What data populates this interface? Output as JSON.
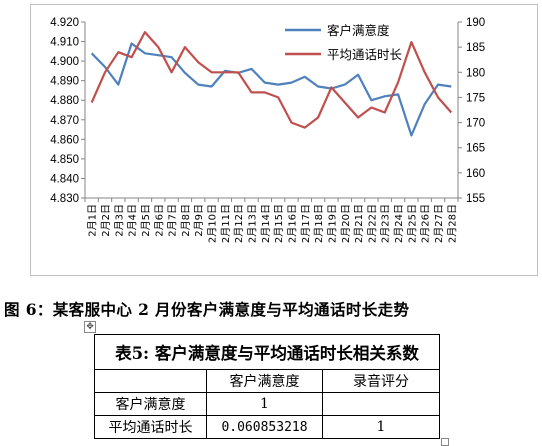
{
  "chart_data": {
    "type": "line",
    "categories": [
      "2月1日",
      "2月2日",
      "2月3日",
      "2月4日",
      "2月5日",
      "2月6日",
      "2月7日",
      "2月8日",
      "2月9日",
      "2月10日",
      "2月11日",
      "2月12日",
      "2月13日",
      "2月14日",
      "2月15日",
      "2月16日",
      "2月17日",
      "2月18日",
      "2月19日",
      "2月20日",
      "2月21日",
      "2月22日",
      "2月23日",
      "2月24日",
      "2月25日",
      "2月26日",
      "2月27日",
      "2月28日"
    ],
    "left_axis": {
      "ylim": [
        4.83,
        4.92
      ],
      "ticks": [
        "4.830",
        "4.840",
        "4.850",
        "4.860",
        "4.870",
        "4.880",
        "4.890",
        "4.900",
        "4.910",
        "4.920"
      ]
    },
    "right_axis": {
      "ylim": [
        155,
        190
      ],
      "ticks": [
        "155",
        "160",
        "165",
        "170",
        "175",
        "180",
        "185",
        "190"
      ]
    },
    "legend_position": "top-right",
    "series": [
      {
        "name": "客户满意度",
        "axis": "left",
        "color": "#4f81bd",
        "values": [
          4.904,
          4.897,
          4.888,
          4.909,
          4.904,
          4.903,
          4.902,
          4.894,
          4.888,
          4.887,
          4.895,
          4.894,
          4.896,
          4.889,
          4.888,
          4.889,
          4.892,
          4.887,
          4.886,
          4.888,
          4.893,
          4.88,
          4.882,
          4.883,
          4.862,
          4.878,
          4.888,
          4.887
        ]
      },
      {
        "name": "平均通话时长",
        "axis": "right",
        "color": "#c0504d",
        "values": [
          174,
          180,
          184,
          183,
          188,
          185,
          180,
          185,
          182,
          180,
          180,
          180,
          176,
          176,
          175,
          170,
          169,
          171,
          177,
          174,
          171,
          173,
          172,
          178,
          186,
          180,
          175,
          172
        ]
      }
    ]
  },
  "caption": "图 6：某客服中心 2 月份客户满意度与平均通话时长走势",
  "table": {
    "title": "表5: 客户满意度与平均通话时长相关系数",
    "header": [
      "",
      "客户满意度",
      "录音评分"
    ],
    "rows": [
      [
        "客户满意度",
        "1",
        ""
      ],
      [
        "平均通话时长",
        "0.060853218",
        "1"
      ]
    ]
  }
}
